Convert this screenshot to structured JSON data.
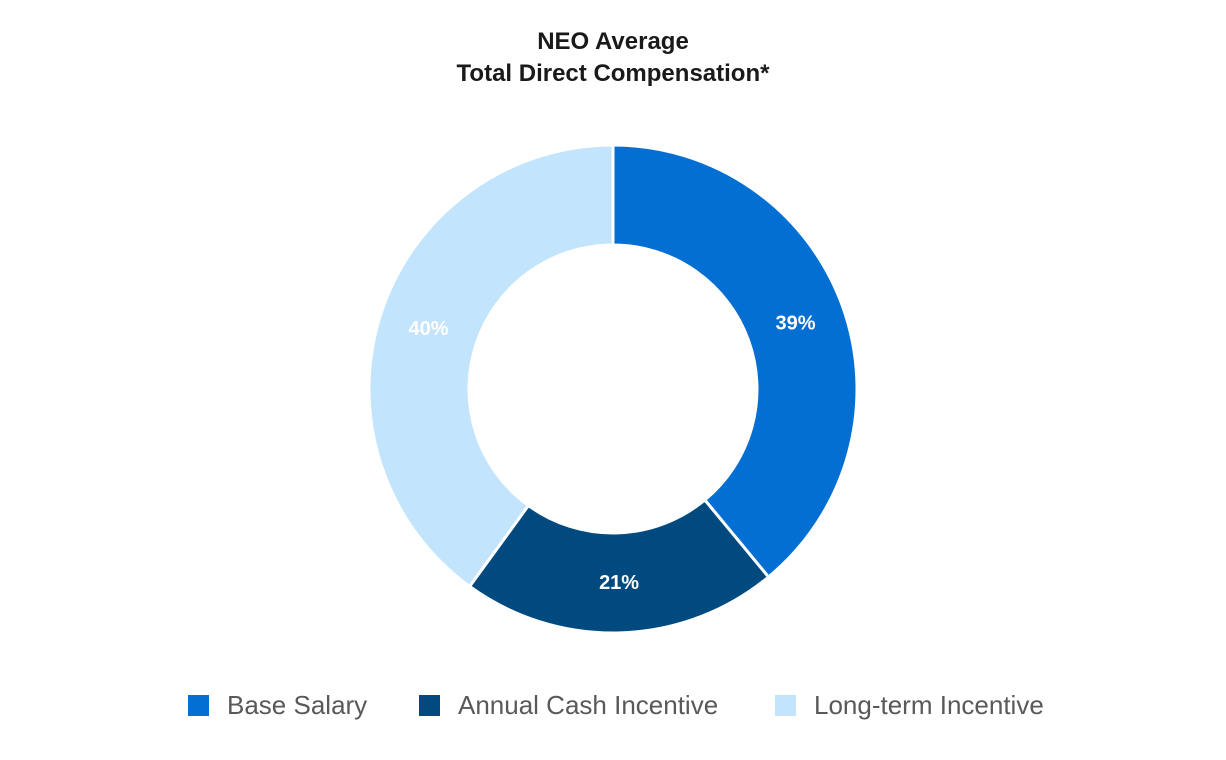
{
  "chart_data": {
    "type": "pie",
    "donut": true,
    "title": "NEO Average",
    "subtitle": "Total Direct Compensation*",
    "slices": [
      {
        "name": "Base Salary",
        "value": 39,
        "label": "39%",
        "color": "#036FD3",
        "label_color": "#FFFFFF"
      },
      {
        "name": "Annual Cash Incentive",
        "value": 21,
        "label": "21%",
        "color": "#004A7F",
        "label_color": "#FFFFFF"
      },
      {
        "name": "Long-term Incentive",
        "value": 40,
        "label": "40%",
        "color": "#C2E4FC",
        "label_color": "#FFFFFF"
      }
    ],
    "legend_position": "bottom"
  }
}
